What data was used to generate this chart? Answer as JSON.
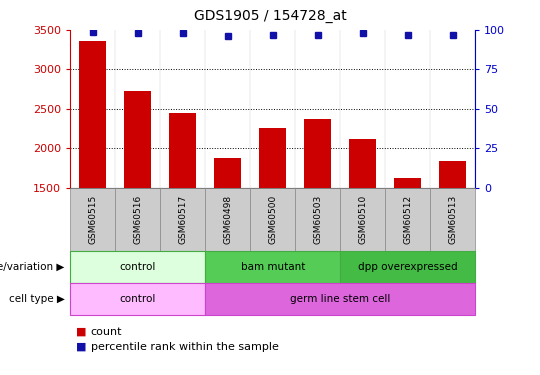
{
  "title": "GDS1905 / 154728_at",
  "samples": [
    "GSM60515",
    "GSM60516",
    "GSM60517",
    "GSM60498",
    "GSM60500",
    "GSM60503",
    "GSM60510",
    "GSM60512",
    "GSM60513"
  ],
  "counts": [
    3360,
    2720,
    2450,
    1880,
    2260,
    2370,
    2110,
    1620,
    1840
  ],
  "percentile_ranks": [
    99,
    98,
    98,
    96,
    97,
    97,
    98,
    97,
    97
  ],
  "ylim_left": [
    1500,
    3500
  ],
  "ylim_right": [
    0,
    100
  ],
  "yticks_left": [
    1500,
    2000,
    2500,
    3000,
    3500
  ],
  "yticks_right": [
    0,
    25,
    50,
    75,
    100
  ],
  "bar_color": "#cc0000",
  "dot_color": "#1111aa",
  "grid_color": "#000000",
  "tick_color_left": "#cc0000",
  "tick_color_right": "#0000cc",
  "genotype_groups": [
    {
      "label": "control",
      "start": 0,
      "end": 3,
      "color": "#ddffdd",
      "edge_color": "#44aa44"
    },
    {
      "label": "bam mutant",
      "start": 3,
      "end": 6,
      "color": "#55cc55",
      "edge_color": "#44aa44"
    },
    {
      "label": "dpp overexpressed",
      "start": 6,
      "end": 9,
      "color": "#44bb44",
      "edge_color": "#44aa44"
    }
  ],
  "celltype_groups": [
    {
      "label": "control",
      "start": 0,
      "end": 3,
      "color": "#ffbbff",
      "edge_color": "#cc44cc"
    },
    {
      "label": "germ line stem cell",
      "start": 3,
      "end": 9,
      "color": "#dd66dd",
      "edge_color": "#cc44cc"
    }
  ],
  "legend_count_label": "count",
  "legend_percentile_label": "percentile rank within the sample",
  "row1_label": "genotype/variation",
  "row2_label": "cell type",
  "sample_box_color": "#cccccc",
  "sample_box_edge": "#888888"
}
